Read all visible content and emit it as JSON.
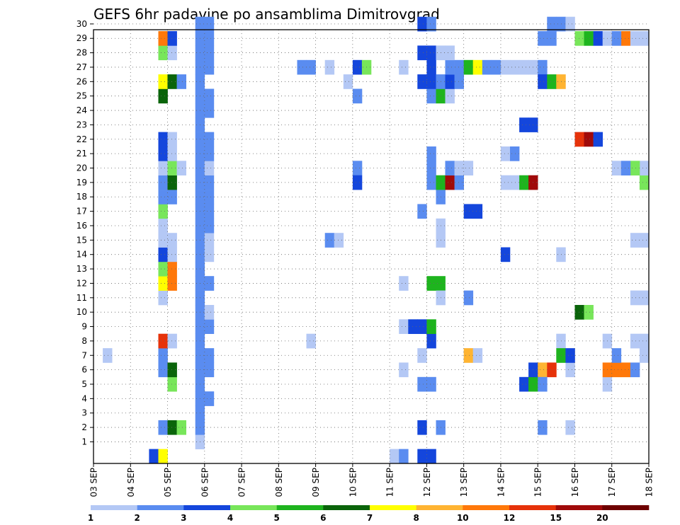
{
  "chart_data": {
    "type": "heatmap",
    "title": "GEFS 6hr padavine po ansamblima Dimitrovgrad",
    "xlabel": "",
    "ylabel": "",
    "x_tick_labels": [
      "03 SEP",
      "04 SEP",
      "05 SEP",
      "06 SEP",
      "07 SEP",
      "08 SEP",
      "09 SEP",
      "10 SEP",
      "11 SEP",
      "12 SEP",
      "13 SEP",
      "14 SEP",
      "15 SEP",
      "16 SEP",
      "17 SEP",
      "18 SEP"
    ],
    "x_range_days": [
      3,
      18
    ],
    "y_tick_labels": [
      "1",
      "2",
      "3",
      "4",
      "5",
      "6",
      "7",
      "8",
      "9",
      "10",
      "11",
      "12",
      "13",
      "14",
      "15",
      "16",
      "17",
      "18",
      "19",
      "20",
      "21",
      "22",
      "23",
      "24",
      "25",
      "26",
      "27",
      "28",
      "29",
      "30"
    ],
    "y_range_members": [
      0,
      30
    ],
    "grid": true,
    "colorbar": {
      "placement": "bottom",
      "labels": [
        "1",
        "2",
        "3",
        "4",
        "5",
        "6",
        "7",
        "8",
        "10",
        "12",
        "15",
        "20"
      ],
      "colors": [
        "#b4c8f5",
        "#5a8cf0",
        "#1446dc",
        "#78e65a",
        "#1eb41e",
        "#0a640a",
        "#ffff00",
        "#ffb432",
        "#ff780a",
        "#e6320a",
        "#a00a0a",
        "#6e0000"
      ]
    },
    "cell_encoding": "each cell = [day_index (0 = 03 SEP 00UTC), six_hour_step (0-3), ensemble_member (0-30), color_class (1-12)]",
    "cells": [
      [
        0,
        1,
        7,
        1
      ],
      [
        1,
        2,
        0,
        3
      ],
      [
        1,
        3,
        0,
        7
      ],
      [
        1,
        3,
        2,
        2
      ],
      [
        1,
        3,
        6,
        2
      ],
      [
        1,
        3,
        7,
        2
      ],
      [
        1,
        3,
        8,
        10
      ],
      [
        1,
        3,
        11,
        1
      ],
      [
        1,
        3,
        12,
        7
      ],
      [
        1,
        3,
        13,
        4
      ],
      [
        1,
        3,
        14,
        3
      ],
      [
        1,
        3,
        15,
        1
      ],
      [
        1,
        3,
        16,
        1
      ],
      [
        1,
        3,
        17,
        4
      ],
      [
        1,
        3,
        18,
        2
      ],
      [
        1,
        3,
        19,
        2
      ],
      [
        1,
        3,
        20,
        1
      ],
      [
        1,
        3,
        21,
        3
      ],
      [
        1,
        3,
        22,
        3
      ],
      [
        1,
        3,
        25,
        6
      ],
      [
        1,
        3,
        26,
        7
      ],
      [
        1,
        3,
        28,
        4
      ],
      [
        1,
        3,
        29,
        9
      ],
      [
        2,
        0,
        2,
        6
      ],
      [
        2,
        0,
        5,
        4
      ],
      [
        2,
        0,
        6,
        6
      ],
      [
        2,
        0,
        8,
        1
      ],
      [
        2,
        0,
        12,
        9
      ],
      [
        2,
        0,
        13,
        9
      ],
      [
        2,
        0,
        14,
        1
      ],
      [
        2,
        0,
        15,
        1
      ],
      [
        2,
        0,
        18,
        2
      ],
      [
        2,
        0,
        19,
        6
      ],
      [
        2,
        0,
        20,
        4
      ],
      [
        2,
        0,
        21,
        1
      ],
      [
        2,
        0,
        22,
        1
      ],
      [
        2,
        0,
        26,
        6
      ],
      [
        2,
        0,
        28,
        1
      ],
      [
        2,
        0,
        29,
        3
      ],
      [
        2,
        1,
        2,
        4
      ],
      [
        2,
        1,
        20,
        1
      ],
      [
        2,
        1,
        26,
        2
      ],
      [
        2,
        3,
        1,
        1
      ],
      [
        2,
        3,
        2,
        2
      ],
      [
        2,
        3,
        3,
        2
      ],
      [
        2,
        3,
        4,
        2
      ],
      [
        2,
        3,
        5,
        2
      ],
      [
        2,
        3,
        6,
        2
      ],
      [
        2,
        3,
        7,
        2
      ],
      [
        2,
        3,
        8,
        2
      ],
      [
        2,
        3,
        9,
        2
      ],
      [
        2,
        3,
        10,
        2
      ],
      [
        2,
        3,
        11,
        2
      ],
      [
        2,
        3,
        12,
        2
      ],
      [
        2,
        3,
        13,
        2
      ],
      [
        2,
        3,
        14,
        2
      ],
      [
        2,
        3,
        15,
        2
      ],
      [
        2,
        3,
        16,
        2
      ],
      [
        2,
        3,
        17,
        2
      ],
      [
        2,
        3,
        18,
        2
      ],
      [
        2,
        3,
        19,
        2
      ],
      [
        2,
        3,
        20,
        2
      ],
      [
        2,
        3,
        21,
        2
      ],
      [
        2,
        3,
        22,
        2
      ],
      [
        2,
        3,
        23,
        2
      ],
      [
        2,
        3,
        24,
        2
      ],
      [
        2,
        3,
        25,
        2
      ],
      [
        2,
        3,
        26,
        2
      ],
      [
        2,
        3,
        27,
        2
      ],
      [
        2,
        3,
        28,
        2
      ],
      [
        2,
        3,
        29,
        2
      ],
      [
        2,
        3,
        30,
        2
      ],
      [
        3,
        0,
        4,
        2
      ],
      [
        3,
        0,
        6,
        2
      ],
      [
        3,
        0,
        7,
        2
      ],
      [
        3,
        0,
        9,
        2
      ],
      [
        3,
        0,
        10,
        1
      ],
      [
        3,
        0,
        12,
        2
      ],
      [
        3,
        0,
        14,
        1
      ],
      [
        3,
        0,
        15,
        1
      ],
      [
        3,
        0,
        16,
        2
      ],
      [
        3,
        0,
        17,
        2
      ],
      [
        3,
        0,
        18,
        2
      ],
      [
        3,
        0,
        19,
        2
      ],
      [
        3,
        0,
        20,
        1
      ],
      [
        3,
        0,
        21,
        2
      ],
      [
        3,
        0,
        22,
        2
      ],
      [
        3,
        0,
        24,
        2
      ],
      [
        3,
        0,
        25,
        2
      ],
      [
        3,
        0,
        27,
        2
      ],
      [
        3,
        0,
        28,
        2
      ],
      [
        3,
        0,
        29,
        2
      ],
      [
        3,
        0,
        30,
        2
      ],
      [
        5,
        3,
        8,
        1
      ],
      [
        5,
        3,
        27,
        2
      ],
      [
        5,
        2,
        27,
        2
      ],
      [
        6,
        1,
        27,
        1
      ],
      [
        6,
        1,
        15,
        2
      ],
      [
        6,
        2,
        15,
        1
      ],
      [
        6,
        3,
        26,
        1
      ],
      [
        7,
        0,
        27,
        3
      ],
      [
        7,
        0,
        20,
        2
      ],
      [
        7,
        0,
        19,
        3
      ],
      [
        7,
        0,
        25,
        2
      ],
      [
        7,
        1,
        27,
        4
      ],
      [
        8,
        0,
        0,
        1
      ],
      [
        8,
        1,
        0,
        2
      ],
      [
        8,
        1,
        6,
        1
      ],
      [
        8,
        1,
        12,
        1
      ],
      [
        8,
        1,
        27,
        1
      ],
      [
        8,
        1,
        9,
        1
      ],
      [
        8,
        2,
        9,
        3
      ],
      [
        8,
        3,
        9,
        3
      ],
      [
        9,
        0,
        12,
        5
      ],
      [
        9,
        1,
        12,
        5
      ],
      [
        8,
        3,
        17,
        2
      ],
      [
        8,
        3,
        7,
        1
      ],
      [
        8,
        3,
        5,
        2
      ],
      [
        8,
        3,
        2,
        3
      ],
      [
        8,
        3,
        26,
        3
      ],
      [
        8,
        3,
        28,
        3
      ],
      [
        8,
        3,
        30,
        3
      ],
      [
        8,
        3,
        0,
        3
      ],
      [
        9,
        0,
        0,
        3
      ],
      [
        9,
        0,
        5,
        2
      ],
      [
        9,
        0,
        8,
        3
      ],
      [
        9,
        0,
        9,
        5
      ],
      [
        9,
        0,
        19,
        2
      ],
      [
        9,
        0,
        20,
        2
      ],
      [
        9,
        0,
        21,
        2
      ],
      [
        9,
        0,
        25,
        2
      ],
      [
        9,
        0,
        26,
        3
      ],
      [
        9,
        0,
        27,
        3
      ],
      [
        9,
        0,
        28,
        3
      ],
      [
        9,
        0,
        30,
        2
      ],
      [
        9,
        1,
        2,
        2
      ],
      [
        9,
        1,
        11,
        1
      ],
      [
        9,
        1,
        15,
        1
      ],
      [
        9,
        1,
        16,
        1
      ],
      [
        9,
        1,
        18,
        2
      ],
      [
        9,
        1,
        19,
        5
      ],
      [
        9,
        1,
        25,
        5
      ],
      [
        9,
        1,
        26,
        2
      ],
      [
        9,
        1,
        28,
        1
      ],
      [
        9,
        2,
        19,
        11
      ],
      [
        9,
        2,
        25,
        1
      ],
      [
        9,
        2,
        26,
        3
      ],
      [
        9,
        2,
        27,
        2
      ],
      [
        9,
        2,
        28,
        1
      ],
      [
        9,
        2,
        20,
        2
      ],
      [
        9,
        3,
        19,
        2
      ],
      [
        9,
        3,
        20,
        1
      ],
      [
        9,
        3,
        26,
        2
      ],
      [
        9,
        3,
        27,
        2
      ],
      [
        10,
        0,
        27,
        5
      ],
      [
        10,
        0,
        20,
        1
      ],
      [
        10,
        1,
        27,
        7
      ],
      [
        10,
        2,
        27,
        2
      ],
      [
        10,
        3,
        27,
        2
      ],
      [
        10,
        0,
        7,
        8
      ],
      [
        10,
        1,
        7,
        1
      ],
      [
        10,
        0,
        11,
        2
      ],
      [
        10,
        0,
        17,
        3
      ],
      [
        10,
        1,
        17,
        3
      ],
      [
        11,
        0,
        19,
        1
      ],
      [
        11,
        0,
        21,
        1
      ],
      [
        11,
        1,
        19,
        1
      ],
      [
        11,
        1,
        21,
        2
      ],
      [
        11,
        1,
        27,
        1
      ],
      [
        11,
        0,
        27,
        1
      ],
      [
        11,
        2,
        19,
        5
      ],
      [
        11,
        3,
        19,
        11
      ],
      [
        11,
        0,
        14,
        3
      ],
      [
        11,
        2,
        23,
        3
      ],
      [
        11,
        3,
        23,
        3
      ],
      [
        11,
        2,
        27,
        1
      ],
      [
        11,
        3,
        27,
        1
      ],
      [
        11,
        2,
        5,
        3
      ],
      [
        11,
        3,
        5,
        5
      ],
      [
        11,
        3,
        6,
        3
      ],
      [
        12,
        0,
        6,
        8
      ],
      [
        12,
        0,
        27,
        2
      ],
      [
        12,
        1,
        6,
        10
      ],
      [
        12,
        1,
        29,
        2
      ],
      [
        12,
        1,
        30,
        2
      ],
      [
        12,
        0,
        29,
        2
      ],
      [
        12,
        0,
        2,
        2
      ],
      [
        12,
        0,
        5,
        2
      ],
      [
        12,
        0,
        26,
        3
      ],
      [
        12,
        1,
        26,
        5
      ],
      [
        12,
        2,
        26,
        8
      ],
      [
        12,
        2,
        8,
        1
      ],
      [
        12,
        2,
        30,
        2
      ],
      [
        12,
        2,
        14,
        1
      ],
      [
        12,
        2,
        7,
        5
      ],
      [
        12,
        3,
        6,
        1
      ],
      [
        12,
        3,
        7,
        3
      ],
      [
        12,
        3,
        30,
        1
      ],
      [
        12,
        3,
        2,
        1
      ],
      [
        13,
        0,
        10,
        6
      ],
      [
        13,
        1,
        10,
        4
      ],
      [
        13,
        0,
        22,
        10
      ],
      [
        13,
        1,
        22,
        11
      ],
      [
        13,
        2,
        22,
        3
      ],
      [
        13,
        0,
        29,
        4
      ],
      [
        13,
        1,
        29,
        5
      ],
      [
        13,
        2,
        29,
        3
      ],
      [
        13,
        3,
        29,
        1
      ],
      [
        13,
        3,
        5,
        1
      ],
      [
        13,
        3,
        6,
        9
      ],
      [
        13,
        3,
        8,
        1
      ],
      [
        14,
        0,
        6,
        9
      ],
      [
        14,
        1,
        6,
        9
      ],
      [
        14,
        2,
        6,
        2
      ],
      [
        14,
        0,
        7,
        2
      ],
      [
        14,
        3,
        7,
        1
      ],
      [
        14,
        2,
        8,
        1
      ],
      [
        14,
        3,
        8,
        1
      ],
      [
        14,
        3,
        19,
        4
      ],
      [
        14,
        3,
        20,
        1
      ],
      [
        14,
        2,
        20,
        4
      ],
      [
        14,
        0,
        20,
        1
      ],
      [
        14,
        1,
        20,
        2
      ],
      [
        14,
        3,
        11,
        1
      ],
      [
        14,
        2,
        11,
        1
      ],
      [
        14,
        3,
        15,
        1
      ],
      [
        14,
        2,
        15,
        1
      ],
      [
        14,
        1,
        29,
        9
      ],
      [
        14,
        2,
        29,
        1
      ],
      [
        14,
        3,
        29,
        1
      ],
      [
        14,
        0,
        29,
        2
      ]
    ]
  }
}
